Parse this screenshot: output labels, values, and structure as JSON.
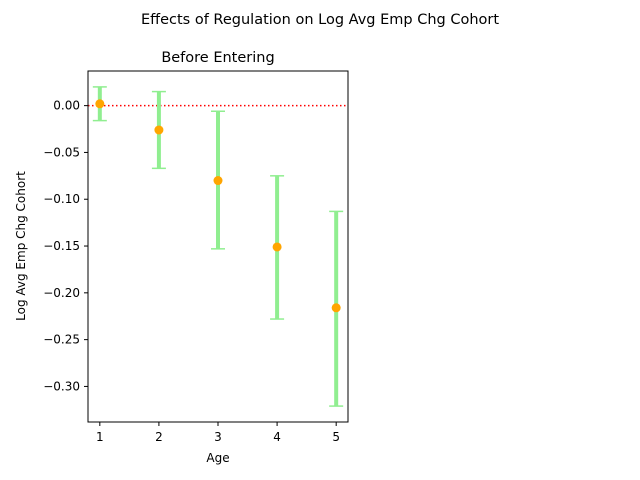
{
  "figure": {
    "suptitle": "Effects of Regulation on Log Avg Emp Chg Cohort"
  },
  "chart_data": {
    "type": "scatter",
    "title": "Before Entering",
    "xlabel": "Age",
    "ylabel": "Log Avg Emp Chg Cohort",
    "xlim": [
      0.8,
      5.2
    ],
    "ylim": [
      -0.338,
      0.037
    ],
    "x_ticks": [
      1,
      2,
      3,
      4,
      5
    ],
    "y_ticks": [
      0.0,
      -0.05,
      -0.1,
      -0.15,
      -0.2,
      -0.25,
      -0.3
    ],
    "reference_line": {
      "y": 0.0,
      "color": "#ff0000",
      "style": "dotted"
    },
    "point_color": "#ffa500",
    "errorbar_color": "#90ee90",
    "points": [
      {
        "x": 1,
        "y": 0.002,
        "lower": -0.016,
        "upper": 0.02
      },
      {
        "x": 2,
        "y": -0.026,
        "lower": -0.067,
        "upper": 0.015
      },
      {
        "x": 3,
        "y": -0.08,
        "lower": -0.153,
        "upper": -0.006
      },
      {
        "x": 4,
        "y": -0.151,
        "lower": -0.228,
        "upper": -0.075
      },
      {
        "x": 5,
        "y": -0.216,
        "lower": -0.321,
        "upper": -0.113
      }
    ],
    "grid": false
  }
}
